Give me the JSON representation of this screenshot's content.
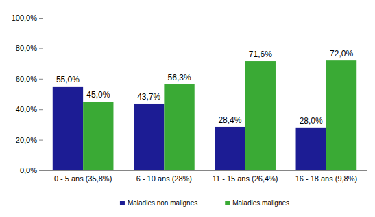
{
  "chart_data": {
    "type": "bar",
    "categories": [
      "0 - 5 ans (35,8%)",
      "6 - 10 ans (28%)",
      "11 - 15 ans (26,4%)",
      "16 - 18 ans (9,8%)"
    ],
    "series": [
      {
        "name": "Maladies non malignes",
        "color": "#1c1c94",
        "values": [
          55.0,
          43.7,
          28.4,
          28.0
        ],
        "value_labels": [
          "55,0%",
          "43,7%",
          "28,4%",
          "28,0%"
        ]
      },
      {
        "name": "Maladies malignes",
        "color": "#3aaa35",
        "values": [
          45.0,
          56.3,
          71.6,
          72.0
        ],
        "value_labels": [
          "45,0%",
          "56,3%",
          "71,6%",
          "72,0%"
        ]
      }
    ],
    "ylim": [
      0,
      100
    ],
    "yticks": [
      {
        "value": 0,
        "label": "0,0%"
      },
      {
        "value": 20,
        "label": "20,0%"
      },
      {
        "value": 40,
        "label": "40,0%"
      },
      {
        "value": 60,
        "label": "60,0%"
      },
      {
        "value": 80,
        "label": "80,0%"
      },
      {
        "value": 100,
        "label": "100,0%"
      }
    ],
    "grid": false,
    "data_labels": true,
    "legend": "bottom"
  }
}
